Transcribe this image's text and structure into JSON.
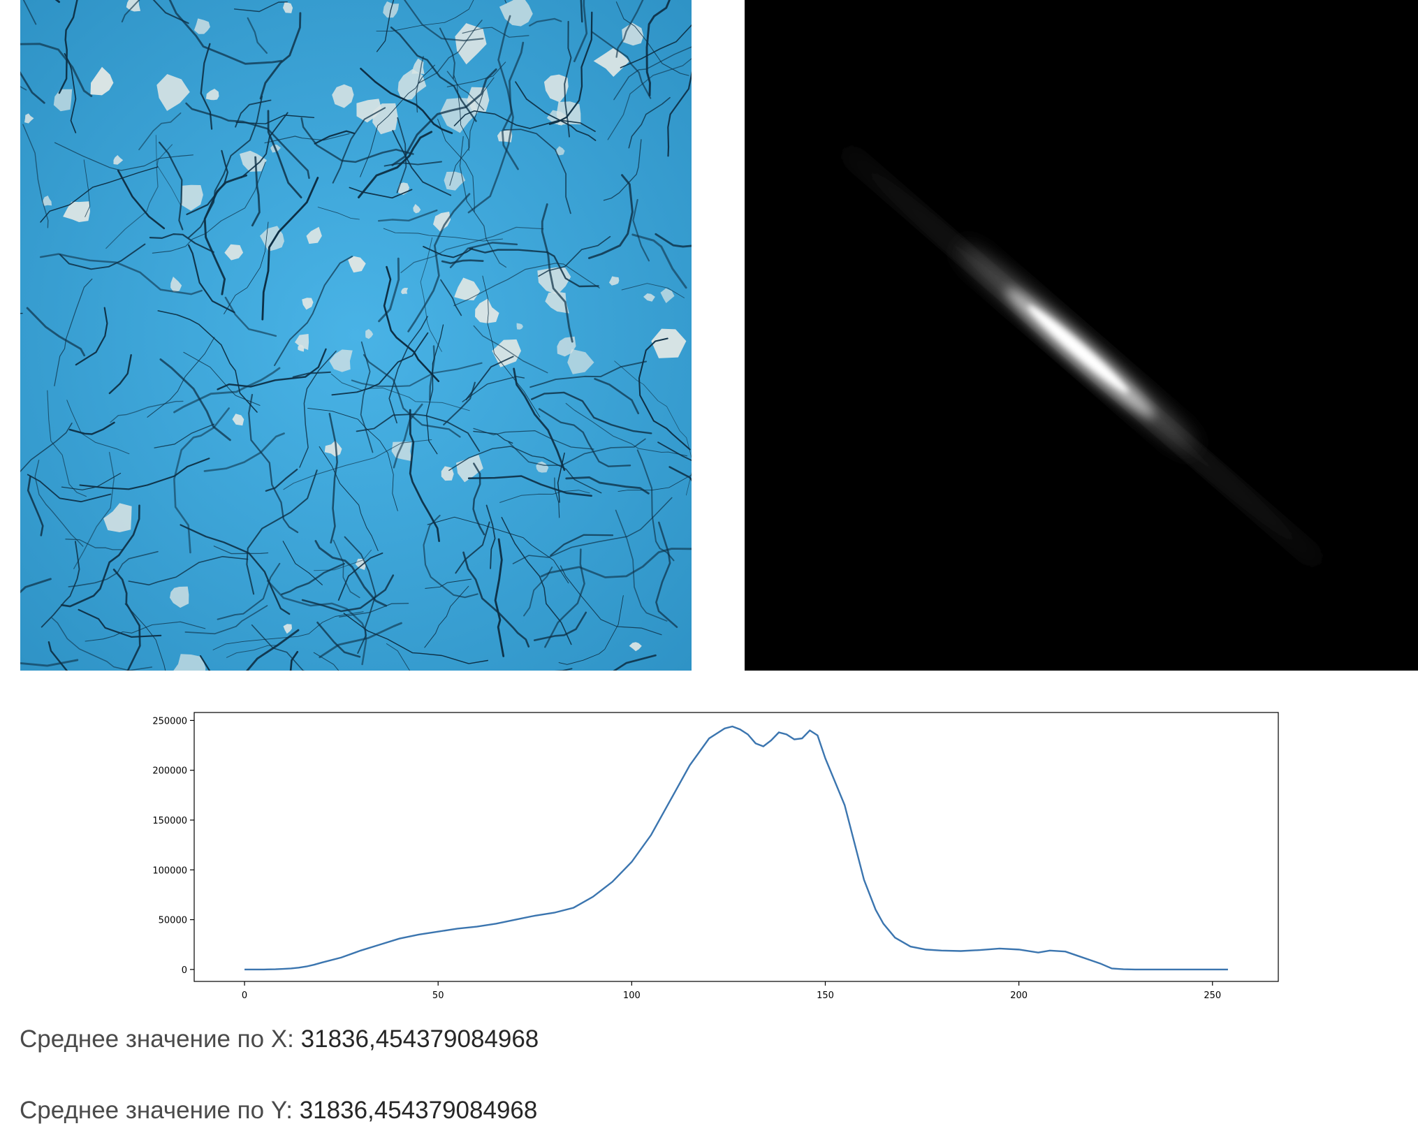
{
  "panels": {
    "texture": {
      "name": "cracked-blue-paint-texture",
      "accent": "#3fa9de",
      "crack": "#0d2f45",
      "chip": "#d9e4e4"
    },
    "matrix": {
      "name": "cooccurrence-matrix-image",
      "background": "#000000",
      "glow": "#ffffff"
    }
  },
  "chart_data": {
    "type": "line",
    "title": "",
    "xlabel": "",
    "ylabel": "",
    "xlim": [
      -13,
      267
    ],
    "ylim": [
      -12000,
      258000
    ],
    "xticks": [
      "0",
      "50",
      "100",
      "150",
      "200",
      "250"
    ],
    "yticks": [
      "0",
      "50000",
      "100000",
      "150000",
      "200000",
      "250000"
    ],
    "grid": false,
    "line_color": "#3b75af",
    "series": [
      {
        "x": [
          0,
          5,
          8,
          10,
          12,
          14,
          16,
          18,
          20,
          25,
          30,
          35,
          40,
          45,
          50,
          55,
          60,
          65,
          70,
          75,
          80,
          85,
          90,
          95,
          100,
          105,
          110,
          115,
          120,
          124,
          126,
          128,
          130,
          132,
          134,
          136,
          138,
          140,
          142,
          144,
          146,
          148,
          150,
          155,
          160,
          163,
          165,
          168,
          172,
          176,
          180,
          185,
          190,
          195,
          200,
          205,
          208,
          212,
          215,
          218,
          221,
          224,
          227,
          230,
          235,
          240,
          245,
          250,
          254
        ],
        "y": [
          0,
          0,
          200,
          600,
          1000,
          1800,
          3000,
          4800,
          7000,
          12000,
          19000,
          25000,
          31000,
          35000,
          38000,
          41000,
          43000,
          46000,
          50000,
          54000,
          57000,
          62000,
          73000,
          88000,
          108000,
          135000,
          170000,
          205000,
          232000,
          242000,
          244000,
          241000,
          236000,
          227000,
          224000,
          230000,
          238000,
          236000,
          231000,
          232000,
          240000,
          235000,
          212000,
          165000,
          90000,
          60000,
          46000,
          32000,
          23000,
          20000,
          19000,
          18500,
          19500,
          21000,
          20000,
          17000,
          19000,
          18000,
          14000,
          10000,
          6000,
          1000,
          200,
          0,
          0,
          0,
          0,
          0,
          0
        ]
      }
    ]
  },
  "stats": {
    "mean_x_label": "Среднее значение по X:",
    "mean_x_value": "31836,454379084968",
    "mean_y_label": "Среднее значение по Y:",
    "mean_y_value": "31836,454379084968"
  }
}
